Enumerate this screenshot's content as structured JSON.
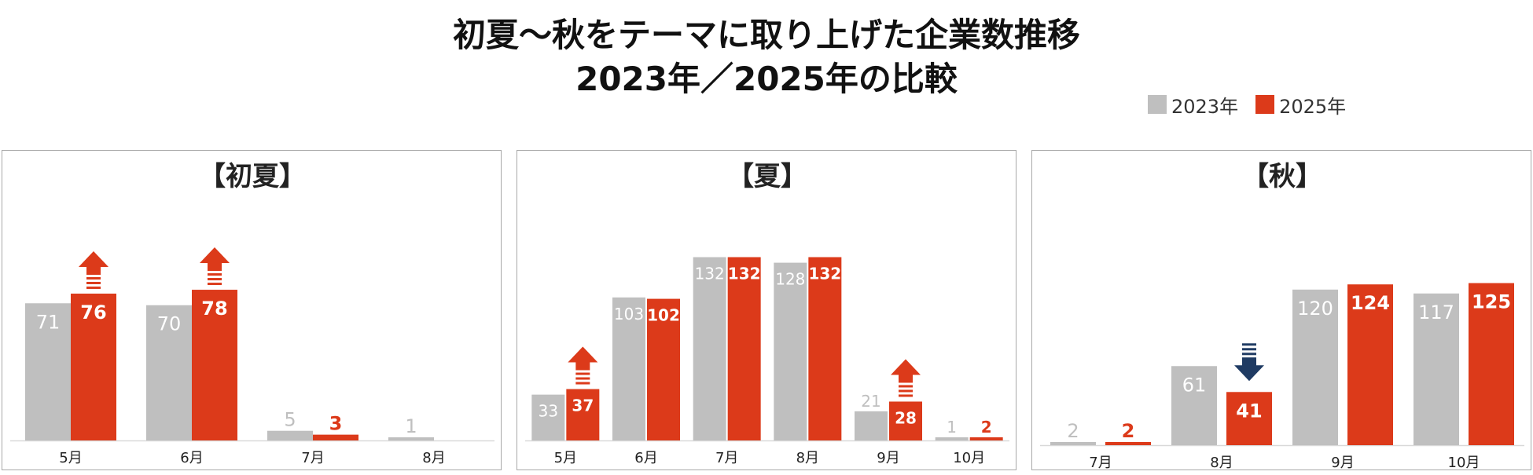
{
  "title_line1": "初夏～秋をテーマに取り上げた企業数推移",
  "title_line2": "2023年／2025年の比較",
  "legend": [
    {
      "label": "2023年",
      "color": "#bfbfbf"
    },
    {
      "label": "2025年",
      "color": "#dc3a1a"
    }
  ],
  "colors": {
    "y2023": "#bfbfbf",
    "y2025": "#dc3a1a",
    "up_arrow": "#dc3a1a",
    "down_arrow": "#1f3b63",
    "baseline": "#d9d9d9"
  },
  "chart_data": [
    {
      "type": "bar",
      "title": "【初夏】",
      "categories": [
        "5月",
        "6月",
        "7月",
        "8月"
      ],
      "series": [
        {
          "name": "2023年",
          "values": [
            71,
            70,
            5,
            1
          ]
        },
        {
          "name": "2025年",
          "values": [
            76,
            78,
            3,
            null
          ]
        }
      ],
      "annotations": [
        {
          "category": "5月",
          "icon": "up-arrow-icon"
        },
        {
          "category": "6月",
          "icon": "up-arrow-icon"
        }
      ],
      "ylim": [
        0,
        115
      ]
    },
    {
      "type": "bar",
      "title": "【夏】",
      "categories": [
        "5月",
        "6月",
        "7月",
        "8月",
        "9月",
        "10月"
      ],
      "series": [
        {
          "name": "2023年",
          "values": [
            33,
            103,
            132,
            128,
            21,
            1
          ]
        },
        {
          "name": "2025年",
          "values": [
            37,
            102,
            132,
            132,
            28,
            2
          ]
        }
      ],
      "annotations": [
        {
          "category": "5月",
          "icon": "up-arrow-icon"
        },
        {
          "category": "9月",
          "icon": "up-arrow-icon"
        }
      ],
      "ylim": [
        0,
        160
      ]
    },
    {
      "type": "bar",
      "title": "【秋】",
      "categories": [
        "7月",
        "8月",
        "9月",
        "10月"
      ],
      "series": [
        {
          "name": "2023年",
          "values": [
            2,
            61,
            120,
            117
          ]
        },
        {
          "name": "2025年",
          "values": [
            2,
            41,
            124,
            125
          ]
        }
      ],
      "annotations": [
        {
          "category": "8月",
          "icon": "down-arrow-icon"
        }
      ],
      "ylim": [
        0,
        175
      ]
    }
  ]
}
